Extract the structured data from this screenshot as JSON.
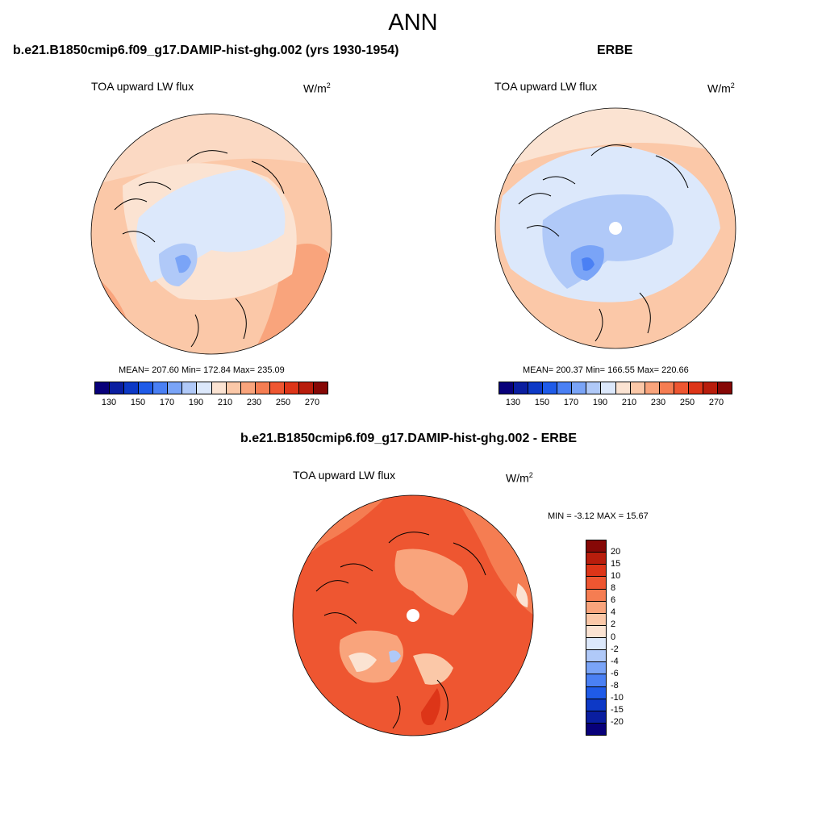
{
  "main_title": "ANN",
  "panels": [
    {
      "title": "b.e21.B1850cmip6.f09_g17.DAMIP-hist-ghg.002 (yrs 1930-1954)",
      "field": "TOA upward LW flux",
      "units": "W/m",
      "units_exp": "2",
      "stats": "MEAN= 207.60  Min= 172.84  Max= 235.09",
      "has_pole_hole": false
    },
    {
      "title": "ERBE",
      "field": "TOA upward LW flux",
      "units": "W/m",
      "units_exp": "2",
      "stats": "MEAN= 200.37  Min= 166.55  Max= 220.66",
      "has_pole_hole": true
    },
    {
      "title": "b.e21.B1850cmip6.f09_g17.DAMIP-hist-ghg.002 - ERBE",
      "field": "TOA upward LW flux",
      "units": "W/m",
      "units_exp": "2",
      "stats": "MIN =  -3.12 MAX =  15.67",
      "has_pole_hole": true
    }
  ],
  "colorbar_abs": {
    "colors": [
      "#08007a",
      "#0a1ea0",
      "#0d39c6",
      "#1f5be8",
      "#4a80f4",
      "#7aa4f7",
      "#b0c9f8",
      "#dce8fb",
      "#fbe3d2",
      "#fbc8a8",
      "#f9a47c",
      "#f57d52",
      "#ee5631",
      "#dd3518",
      "#b81d0c",
      "#860806"
    ],
    "tick_labels": [
      "130",
      "150",
      "170",
      "190",
      "210",
      "230",
      "250",
      "270"
    ]
  },
  "colorbar_diff": {
    "colors": [
      "#860806",
      "#b81d0c",
      "#dd3518",
      "#ee5631",
      "#f57d52",
      "#f9a47c",
      "#fbc8a8",
      "#fbe3d2",
      "#dce8fb",
      "#b0c9f8",
      "#7aa4f7",
      "#4a80f4",
      "#1f5be8",
      "#0d39c6",
      "#0a1ea0",
      "#08007a"
    ],
    "tick_labels": [
      "20",
      "15",
      "10",
      "8",
      "6",
      "4",
      "2",
      "0",
      "-2",
      "-4",
      "-6",
      "-8",
      "-10",
      "-15",
      "-20"
    ]
  }
}
